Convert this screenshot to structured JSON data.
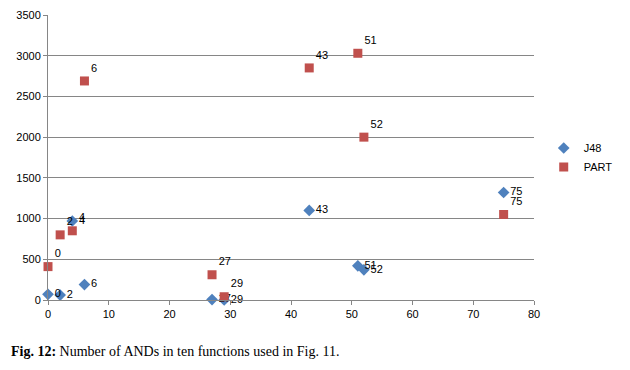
{
  "chart_data": {
    "type": "scatter",
    "caption": "Fig. 12: Number of ANDs in ten functions used in Fig. 11.",
    "series": [
      {
        "name": "J48",
        "color": "#4f81bd",
        "marker": "diamond",
        "x": [
          0,
          2,
          4,
          6,
          27,
          29,
          43,
          51,
          52,
          75
        ],
        "values": [
          70,
          60,
          970,
          190,
          5,
          0,
          1100,
          420,
          370,
          1320
        ]
      },
      {
        "name": "PART",
        "color": "#c0504d",
        "marker": "square",
        "x": [
          0,
          2,
          4,
          6,
          27,
          29,
          43,
          51,
          52,
          75
        ],
        "values": [
          410,
          800,
          850,
          2690,
          310,
          40,
          2850,
          3030,
          2000,
          1050
        ]
      }
    ],
    "xlim": [
      0,
      80
    ],
    "xticks": [
      0,
      10,
      20,
      30,
      40,
      50,
      60,
      70,
      80
    ],
    "ylim": [
      0,
      3500
    ],
    "yticks": [
      0,
      500,
      1000,
      1500,
      2000,
      2500,
      3000,
      3500
    ],
    "grid": true,
    "legend": "right",
    "data_labels": true
  }
}
